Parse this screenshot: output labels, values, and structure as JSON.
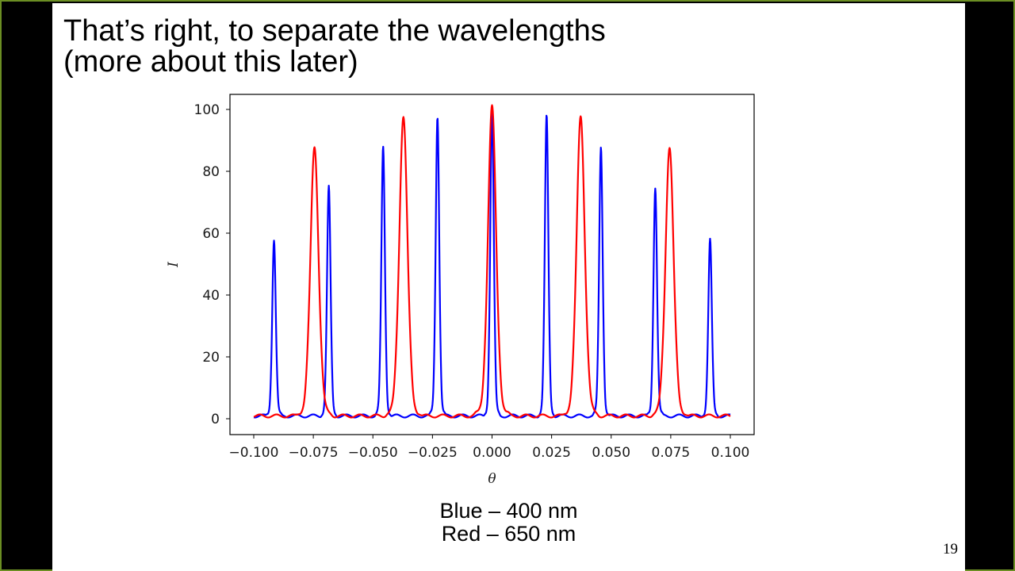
{
  "slide": {
    "title_lines": [
      "That’s right, to separate the wavelengths",
      "(more about this later)"
    ],
    "caption_lines": [
      "Blue – 400 nm",
      "Red – 650 nm"
    ],
    "page_number": "19"
  },
  "chart_data": {
    "type": "line",
    "xlabel": "θ",
    "ylabel": "I",
    "xlim": [
      -0.1,
      0.1
    ],
    "ylim": [
      0,
      100
    ],
    "xticks": [
      "−0.100",
      "−0.075",
      "−0.050",
      "−0.025",
      "0.000",
      "0.025",
      "0.050",
      "0.075",
      "0.100"
    ],
    "yticks": [
      "0",
      "20",
      "40",
      "60",
      "80",
      "100"
    ],
    "grid": false,
    "series": [
      {
        "name": "",
        "color": "#0000ff",
        "peaks": [
          {
            "x": -0.0915,
            "y": 57
          },
          {
            "x": -0.0685,
            "y": 74
          },
          {
            "x": -0.0457,
            "y": 87
          },
          {
            "x": -0.0229,
            "y": 97
          },
          {
            "x": 0.0,
            "y": 100
          },
          {
            "x": 0.0229,
            "y": 97
          },
          {
            "x": 0.0457,
            "y": 87
          },
          {
            "x": 0.0685,
            "y": 74
          },
          {
            "x": 0.0915,
            "y": 57
          }
        ]
      },
      {
        "name": "",
        "color": "#ff0000",
        "peaks": [
          {
            "x": -0.0745,
            "y": 87
          },
          {
            "x": -0.0372,
            "y": 97
          },
          {
            "x": 0.0,
            "y": 100
          },
          {
            "x": 0.0372,
            "y": 97
          },
          {
            "x": 0.0745,
            "y": 87
          }
        ]
      }
    ]
  }
}
